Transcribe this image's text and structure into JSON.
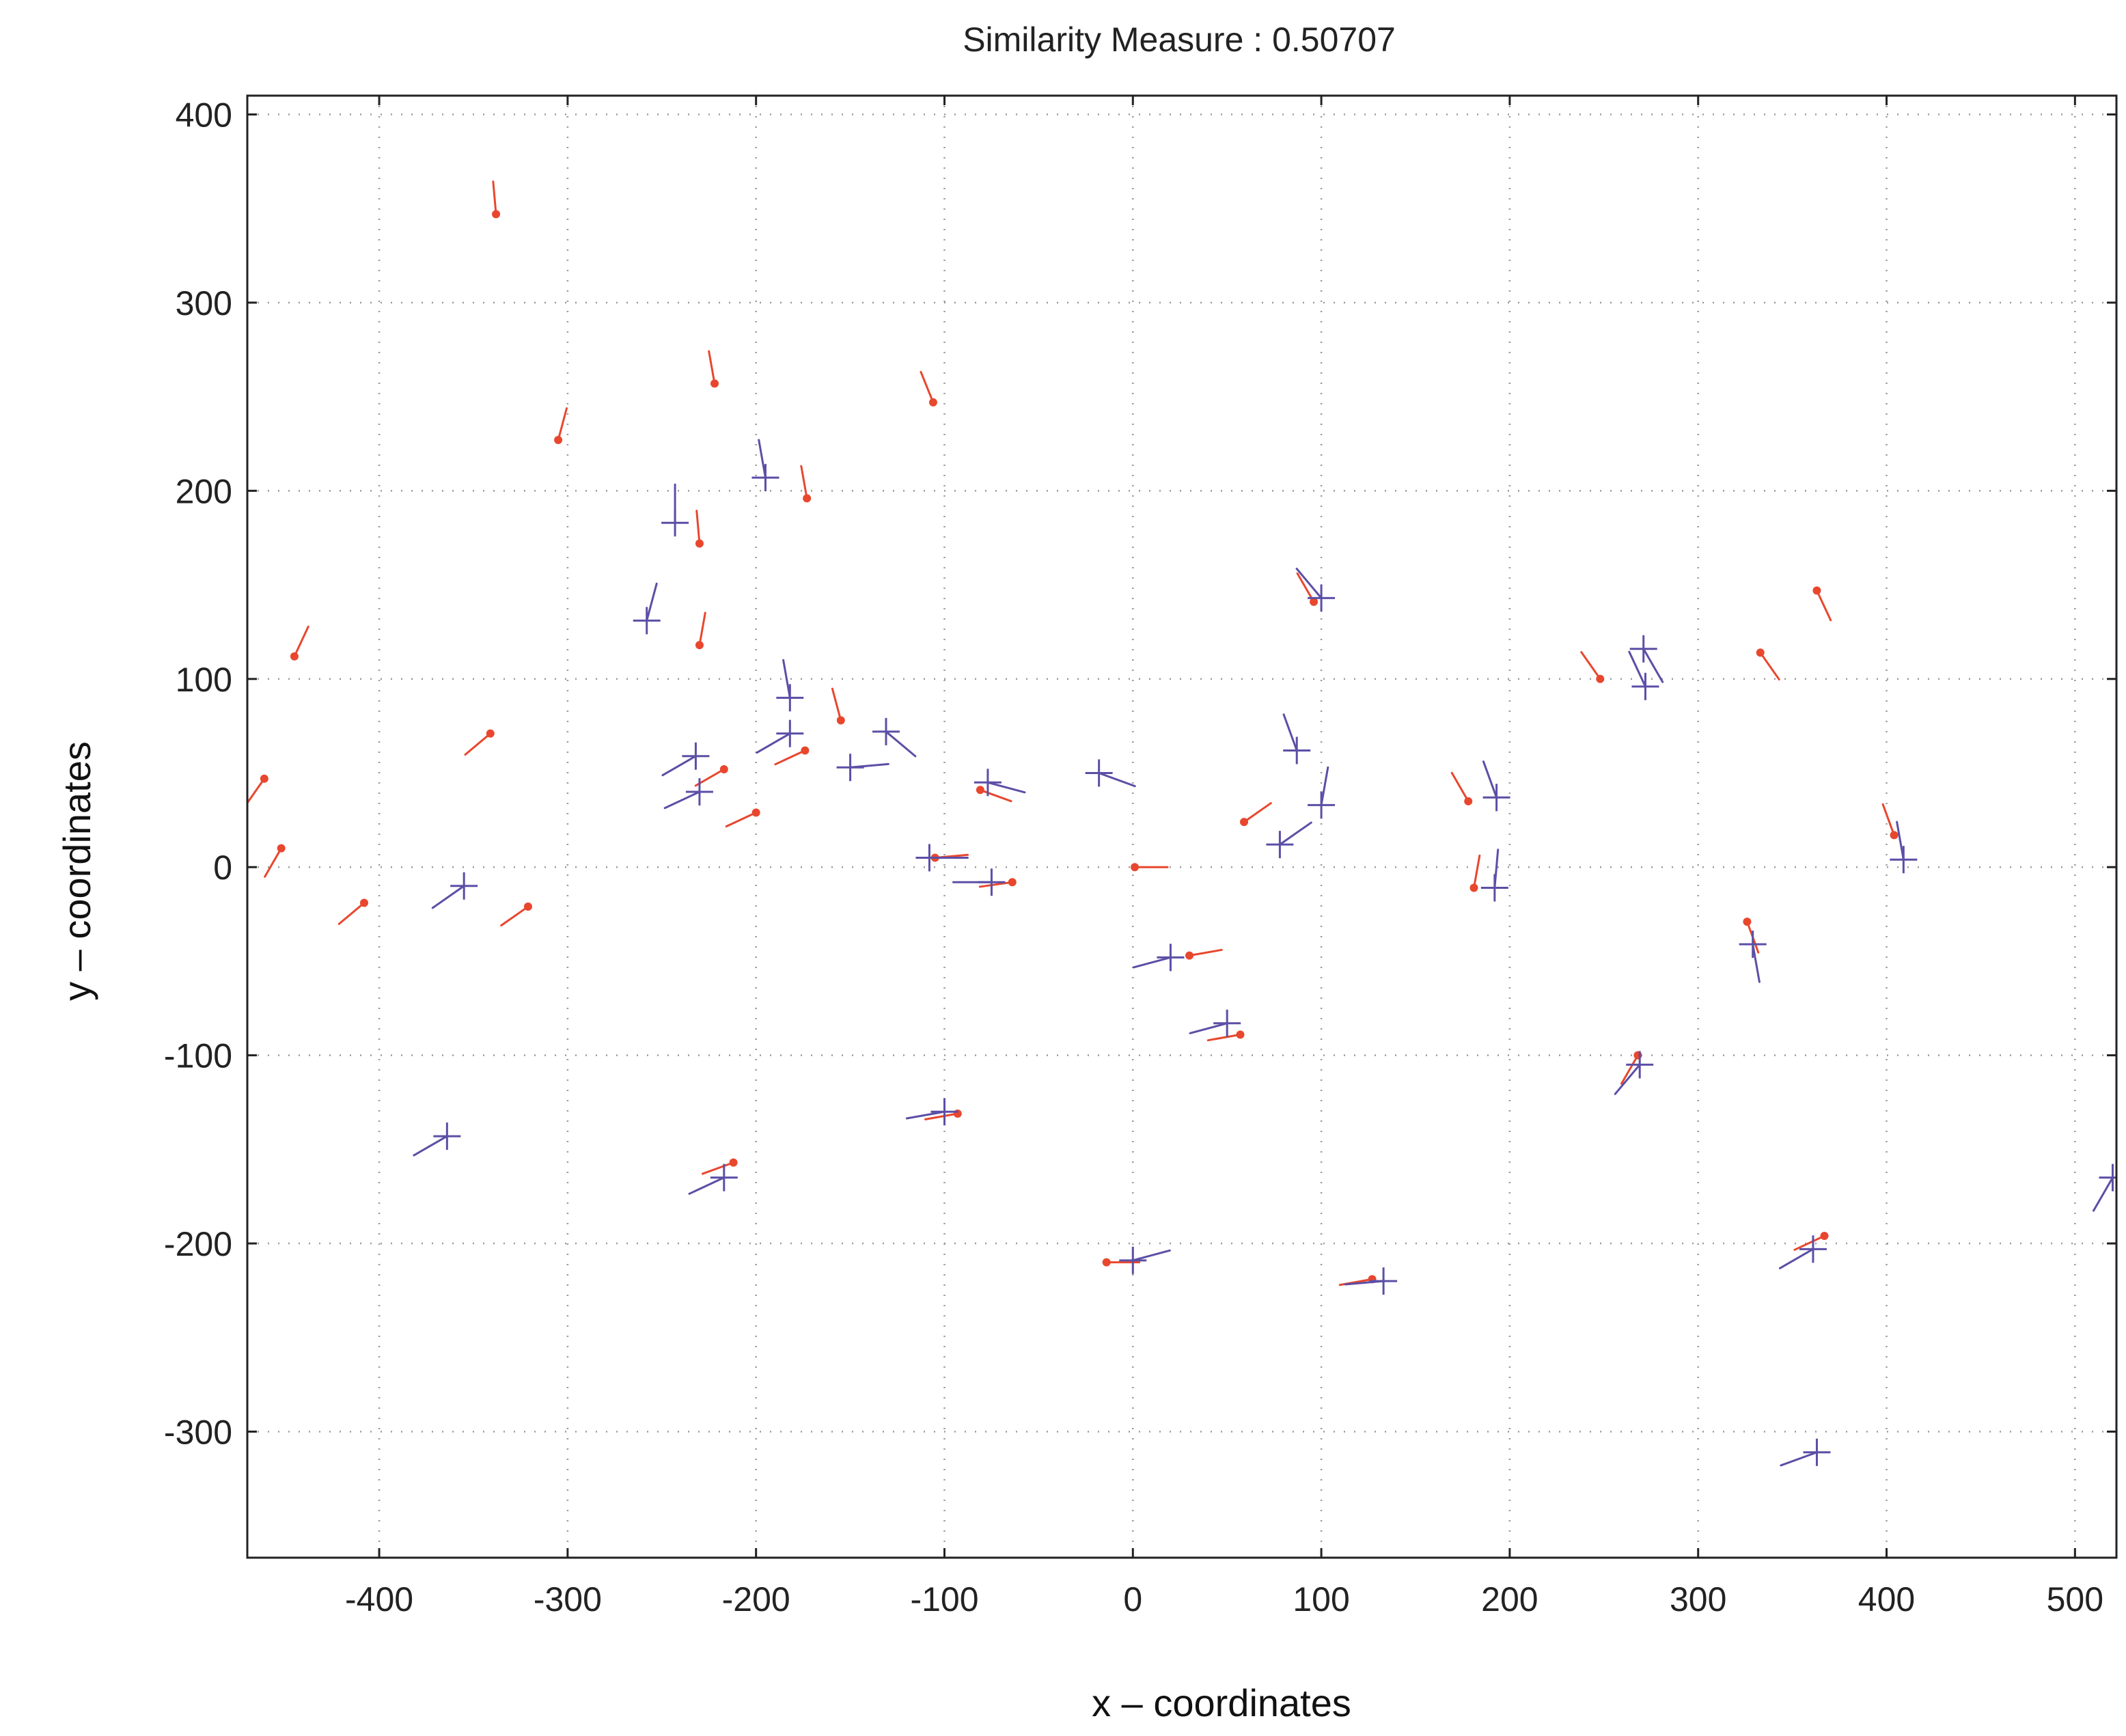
{
  "chart_data": {
    "type": "scatter",
    "title": "Similarity Measure : 0.50707",
    "xlabel": "x – coordinates",
    "ylabel": "y – coordinates",
    "xlim": [
      -470,
      522
    ],
    "ylim": [
      -367,
      410
    ],
    "xticks": [
      -400,
      -300,
      -200,
      -100,
      0,
      100,
      200,
      300,
      400,
      500
    ],
    "yticks": [
      -300,
      -200,
      -100,
      0,
      100,
      200,
      300,
      400
    ],
    "grid": true,
    "colors": {
      "series_a": "#e8472e",
      "series_b": "#5b4fa6",
      "axis": "#222222",
      "grid": "#9a9a9a"
    },
    "series": [
      {
        "marker": "dot",
        "color": "#e8472e",
        "points": [
          {
            "x": -338,
            "y": 347,
            "angle": 95
          },
          {
            "x": -222,
            "y": 257,
            "angle": 100
          },
          {
            "x": -106,
            "y": 247,
            "angle": 112
          },
          {
            "x": -305,
            "y": 227,
            "angle": 75
          },
          {
            "x": -173,
            "y": 196,
            "angle": 100
          },
          {
            "x": -230,
            "y": 172,
            "angle": 95
          },
          {
            "x": -445,
            "y": 112,
            "angle": 65
          },
          {
            "x": -230,
            "y": 118,
            "angle": 80
          },
          {
            "x": -155,
            "y": 78,
            "angle": 105
          },
          {
            "x": -341,
            "y": 71,
            "angle": 220
          },
          {
            "x": -461,
            "y": 47,
            "angle": 235
          },
          {
            "x": -174,
            "y": 62,
            "angle": 205
          },
          {
            "x": -217,
            "y": 52,
            "angle": 210
          },
          {
            "x": -200,
            "y": 29,
            "angle": 205
          },
          {
            "x": -452,
            "y": 10,
            "angle": 240
          },
          {
            "x": -408,
            "y": -19,
            "angle": 220
          },
          {
            "x": -321,
            "y": -21,
            "angle": 215
          },
          {
            "x": -81,
            "y": 41,
            "angle": 340
          },
          {
            "x": -64,
            "y": -8,
            "angle": 188
          },
          {
            "x": -105,
            "y": 5,
            "angle": 5
          },
          {
            "x": -93,
            "y": -131,
            "angle": 190
          },
          {
            "x": -212,
            "y": -157,
            "angle": 200
          },
          {
            "x": 1,
            "y": 0,
            "angle": 0
          },
          {
            "x": -14,
            "y": -210,
            "angle": 0
          },
          {
            "x": 30,
            "y": -47,
            "angle": 10
          },
          {
            "x": 57,
            "y": -89,
            "angle": 190
          },
          {
            "x": 59,
            "y": 24,
            "angle": 35
          },
          {
            "x": 96,
            "y": 141,
            "angle": 120
          },
          {
            "x": 127,
            "y": -219,
            "angle": 190
          },
          {
            "x": 178,
            "y": 35,
            "angle": 120
          },
          {
            "x": 181,
            "y": -11,
            "angle": 80
          },
          {
            "x": 248,
            "y": 100,
            "angle": 125
          },
          {
            "x": 268,
            "y": -100,
            "angle": 240
          },
          {
            "x": 326,
            "y": -29,
            "angle": 290
          },
          {
            "x": 333,
            "y": 114,
            "angle": 305
          },
          {
            "x": 363,
            "y": 147,
            "angle": 295
          },
          {
            "x": 367,
            "y": -196,
            "angle": 205
          },
          {
            "x": 404,
            "y": 17,
            "angle": 110
          }
        ]
      },
      {
        "marker": "cross",
        "color": "#5b4fa6",
        "points": [
          {
            "x": -195,
            "y": 207,
            "angle": 100
          },
          {
            "x": -243,
            "y": 183,
            "angle": 90
          },
          {
            "x": -258,
            "y": 131,
            "angle": 75
          },
          {
            "x": -182,
            "y": 90,
            "angle": 100
          },
          {
            "x": -182,
            "y": 71,
            "angle": 210
          },
          {
            "x": -232,
            "y": 59,
            "angle": 210
          },
          {
            "x": -230,
            "y": 40,
            "angle": 205
          },
          {
            "x": -150,
            "y": 53,
            "angle": 5
          },
          {
            "x": -131,
            "y": 72,
            "angle": 320
          },
          {
            "x": -355,
            "y": -10,
            "angle": 215
          },
          {
            "x": -77,
            "y": 45,
            "angle": 345
          },
          {
            "x": -75,
            "y": -8,
            "angle": 180
          },
          {
            "x": -108,
            "y": 5,
            "angle": 0
          },
          {
            "x": -100,
            "y": -130,
            "angle": 190
          },
          {
            "x": -217,
            "y": -165,
            "angle": 205
          },
          {
            "x": -364,
            "y": -143,
            "angle": 210
          },
          {
            "x": -18,
            "y": 50,
            "angle": 340
          },
          {
            "x": 0,
            "y": -209,
            "angle": 15
          },
          {
            "x": 20,
            "y": -48,
            "angle": 195
          },
          {
            "x": 50,
            "y": -83,
            "angle": 195
          },
          {
            "x": 87,
            "y": 62,
            "angle": 110
          },
          {
            "x": 78,
            "y": 12,
            "angle": 35
          },
          {
            "x": 100,
            "y": 33,
            "angle": 80
          },
          {
            "x": 100,
            "y": 143,
            "angle": 130
          },
          {
            "x": 133,
            "y": -220,
            "angle": 185
          },
          {
            "x": 193,
            "y": 37,
            "angle": 110
          },
          {
            "x": 192,
            "y": -11,
            "angle": 85
          },
          {
            "x": 271,
            "y": 116,
            "angle": 300
          },
          {
            "x": 272,
            "y": 96,
            "angle": 115
          },
          {
            "x": 269,
            "y": -105,
            "angle": 230
          },
          {
            "x": 329,
            "y": -41,
            "angle": 280
          },
          {
            "x": 361,
            "y": -203,
            "angle": 210
          },
          {
            "x": 363,
            "y": -311,
            "angle": 200
          },
          {
            "x": 409,
            "y": 4,
            "angle": 100
          },
          {
            "x": 520,
            "y": -165,
            "angle": 240
          }
        ]
      }
    ]
  }
}
